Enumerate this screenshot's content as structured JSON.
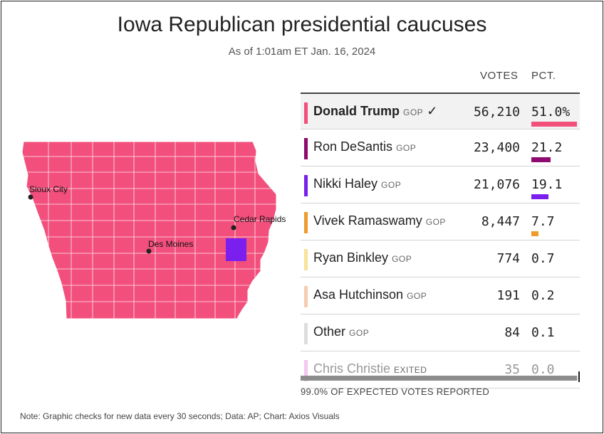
{
  "title": "Iowa Republican presidential caucuses",
  "subtitle": "As of 1:01am ET Jan. 16, 2024",
  "headers": {
    "votes": "VOTES",
    "pct": "PCT."
  },
  "colors": {
    "trump": "#f2507a",
    "desantis": "#8e0c6f",
    "haley": "#7b1fee",
    "ramaswamy": "#ef9a2c",
    "binkley": "#f8e39a",
    "hutchinson": "#f5cdb2",
    "other": "#dddddd",
    "christie": "#f6c6f2"
  },
  "map": {
    "cities": [
      "Sioux City",
      "Des Moines",
      "Cedar Rapids"
    ]
  },
  "chart_data": {
    "type": "table",
    "title": "Iowa Republican presidential caucuses",
    "subtitle": "As of 1:01am ET Jan. 16, 2024",
    "columns": [
      "VOTES",
      "PCT."
    ],
    "rows": [
      {
        "name": "Donald Trump",
        "party": "GOP",
        "winner": "✓",
        "votes": "56,210",
        "pct": "51.0%",
        "pct_value": 51.0,
        "color": "#f2507a"
      },
      {
        "name": "Ron DeSantis",
        "party": "GOP",
        "votes": "23,400",
        "pct": "21.2",
        "pct_value": 21.2,
        "color": "#8e0c6f"
      },
      {
        "name": "Nikki Haley",
        "party": "GOP",
        "votes": "21,076",
        "pct": "19.1",
        "pct_value": 19.1,
        "color": "#7b1fee"
      },
      {
        "name": "Vivek Ramaswamy",
        "party": "GOP",
        "votes": "8,447",
        "pct": "7.7",
        "pct_value": 7.7,
        "color": "#ef9a2c"
      },
      {
        "name": "Ryan Binkley",
        "party": "GOP",
        "votes": "774",
        "pct": "0.7",
        "pct_value": 0.7,
        "color": "#f8e39a"
      },
      {
        "name": "Asa Hutchinson",
        "party": "GOP",
        "votes": "191",
        "pct": "0.2",
        "pct_value": 0.2,
        "color": "#f5cdb2"
      },
      {
        "name": "Other",
        "party": "GOP",
        "votes": "84",
        "pct": "0.1",
        "pct_value": 0.1,
        "color": "#dddddd"
      },
      {
        "name": "Chris Christie",
        "party": "EXITED",
        "votes": "35",
        "pct": "0.0",
        "pct_value": 0.0,
        "color": "#f6c6f2",
        "faded": true
      }
    ],
    "expected_reported_pct": 99.0
  },
  "reported_label": "99.0% OF EXPECTED VOTES REPORTED",
  "note": "Note: Graphic checks for new data every 30 seconds; Data: AP; Chart: Axios Visuals"
}
